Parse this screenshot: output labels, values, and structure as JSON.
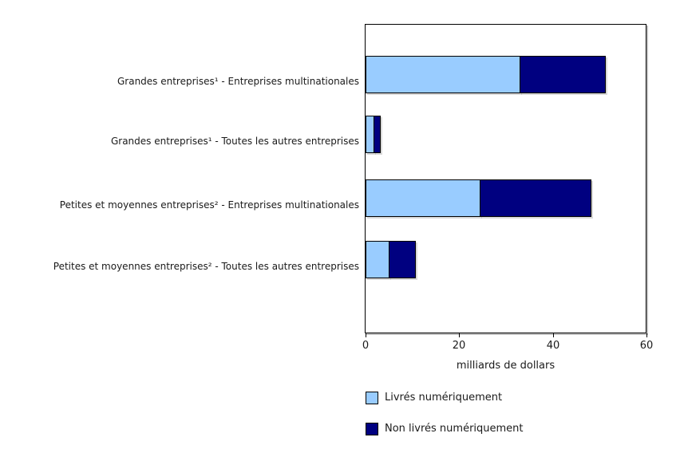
{
  "chart_data": {
    "type": "bar",
    "orientation": "horizontal",
    "stacked": true,
    "title": "",
    "categories": [
      "Grandes entreprises¹ - Entreprises multinationales",
      "Grandes entreprises¹ - Toutes les autres entreprises",
      "Petites et moyennes entreprises² - Entreprises multinationales",
      "Petites et moyennes entreprises² - Toutes les autres entreprises"
    ],
    "series": [
      {
        "name": "Livrés numériquement",
        "color": "#99CCFF",
        "values": [
          33.1,
          1.9,
          24.5,
          5.1
        ]
      },
      {
        "name": "Non livrés numériquement",
        "color": "#000080",
        "values": [
          18.4,
          1.6,
          23.8,
          5.8
        ]
      }
    ],
    "totals": [
      51.5,
      3.5,
      48.3,
      10.9
    ],
    "xlabel": "milliards de dollars",
    "xlim": [
      0,
      60
    ],
    "xticks": [
      0,
      20,
      40,
      60
    ],
    "grid": false,
    "legend_position": "bottom-left",
    "colors": {
      "bar_border": "#000000",
      "frame_border": "#000000",
      "text": "#1a1a1a",
      "background": "#ffffff"
    }
  }
}
